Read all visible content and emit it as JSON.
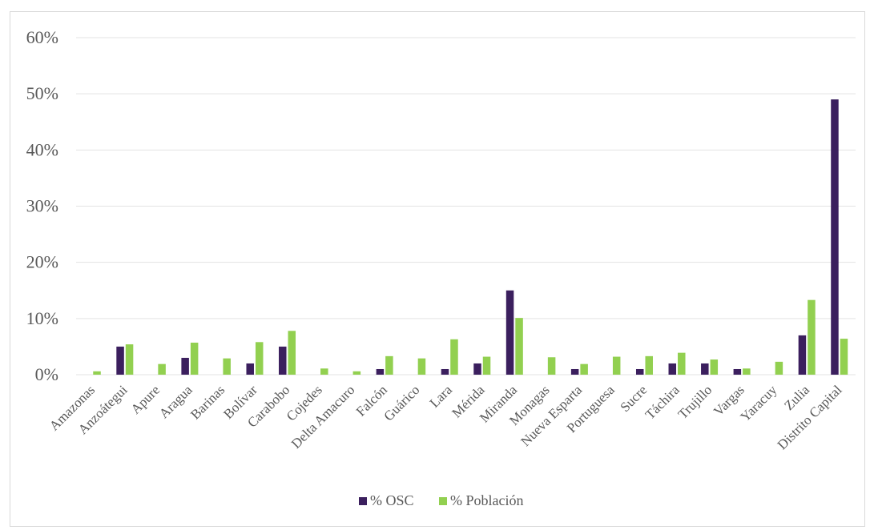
{
  "chart_data": {
    "type": "bar",
    "title": "",
    "xlabel": "",
    "ylabel": "",
    "ylim": [
      0,
      60
    ],
    "y_ticks": [
      "0%",
      "10%",
      "20%",
      "30%",
      "40%",
      "50%",
      "60%"
    ],
    "grid": true,
    "legend_position": "bottom",
    "categories": [
      "Amazonas",
      "Anzoátegui",
      "Apure",
      "Aragua",
      "Barinas",
      "Bolívar",
      "Carabobo",
      "Cojedes",
      "Delta Amacuro",
      "Falcón",
      "Guárico",
      "Lara",
      "Mérida",
      "Miranda",
      "Monagas",
      "Nueva Esparta",
      "Portuguesa",
      "Sucre",
      "Táchira",
      "Trujillo",
      "Vargas",
      "Yaracuy",
      "Zulia",
      "Distrito Capital"
    ],
    "series": [
      {
        "name": "% OSC",
        "color": "#3b1f5e",
        "values": [
          0,
          5,
          0,
          3,
          0,
          2,
          5,
          0,
          0,
          1,
          0,
          1,
          2,
          15,
          0,
          1,
          0,
          1,
          2,
          2,
          1,
          0,
          7,
          49
        ]
      },
      {
        "name": "% Población",
        "color": "#92d050",
        "values": [
          0.6,
          5.4,
          1.9,
          5.7,
          2.9,
          5.8,
          7.8,
          1.1,
          0.6,
          3.3,
          2.9,
          6.3,
          3.2,
          10.1,
          3.1,
          1.9,
          3.2,
          3.3,
          3.9,
          2.7,
          1.1,
          2.3,
          13.3,
          6.4
        ]
      }
    ]
  }
}
